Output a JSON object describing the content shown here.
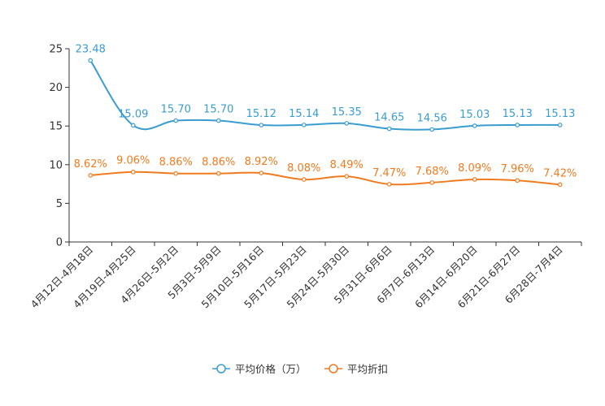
{
  "chart_data": {
    "type": "line",
    "categories": [
      "4月12日-4月18日",
      "4月19日-4月25日",
      "4月26日-5月2日",
      "5月3日-5月9日",
      "5月10日-5月16日",
      "5月17日-5月23日",
      "5月24日-5月30日",
      "5月31日-6月6日",
      "6月7日-6月13日",
      "6月14日-6月20日",
      "6月21日-6月27日",
      "6月28日-7月4日"
    ],
    "series": [
      {
        "name": "平均价格（万）",
        "color": "#3a9dd1",
        "values": [
          23.48,
          15.09,
          15.7,
          15.7,
          15.12,
          15.14,
          15.35,
          14.65,
          14.56,
          15.03,
          15.13,
          15.13
        ],
        "labels": [
          "23.48",
          "15.09",
          "15.70",
          "15.70",
          "15.12",
          "15.14",
          "15.35",
          "14.65",
          "14.56",
          "15.03",
          "15.13",
          "15.13"
        ]
      },
      {
        "name": "平均折扣",
        "color": "#f07b1f",
        "values": [
          8.62,
          9.06,
          8.86,
          8.86,
          8.92,
          8.08,
          8.49,
          7.47,
          7.68,
          8.09,
          7.96,
          7.42
        ],
        "labels": [
          "8.62%",
          "9.06%",
          "8.86%",
          "8.86%",
          "8.92%",
          "8.08%",
          "8.49%",
          "7.47%",
          "7.68%",
          "8.09%",
          "7.96%",
          "7.42%"
        ]
      }
    ],
    "ylim": [
      0,
      25
    ],
    "yticks": [
      "0",
      "5",
      "10",
      "15",
      "20",
      "25"
    ],
    "title": "",
    "xlabel": "",
    "ylabel": "",
    "grid": false,
    "legend_position": "bottom-center"
  }
}
